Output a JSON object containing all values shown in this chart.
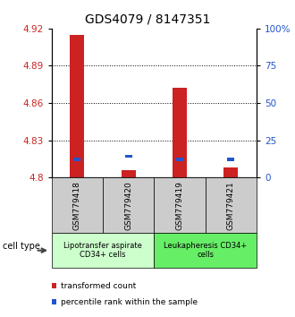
{
  "title": "GDS4079 / 8147351",
  "samples": [
    "GSM779418",
    "GSM779420",
    "GSM779419",
    "GSM779421"
  ],
  "red_values": [
    4.915,
    4.806,
    4.872,
    4.808
  ],
  "blue_values": [
    4.8145,
    4.817,
    4.8145,
    4.8145
  ],
  "ymin": 4.8,
  "ymax": 4.92,
  "yticks_left": [
    4.8,
    4.83,
    4.86,
    4.89,
    4.92
  ],
  "yticks_right": [
    0,
    25,
    50,
    75,
    100
  ],
  "yticks_right_labels": [
    "0",
    "25",
    "50",
    "75",
    "100%"
  ],
  "dotted_lines": [
    4.83,
    4.86,
    4.89
  ],
  "bar_width": 0.28,
  "red_color": "#cc2222",
  "blue_color": "#2255cc",
  "group1_label": "Lipotransfer aspirate\nCD34+ cells",
  "group2_label": "Leukapheresis CD34+\ncells",
  "group1_color": "#ccffcc",
  "group2_color": "#66ee66",
  "cell_type_label": "cell type",
  "legend_red": "transformed count",
  "legend_blue": "percentile rank within the sample",
  "base_value": 4.8,
  "title_fontsize": 10,
  "tick_fontsize": 7.5,
  "label_fontsize": 7.0,
  "sample_fontsize": 6.5,
  "group_fontsize": 6.0,
  "legend_fontsize": 6.5
}
